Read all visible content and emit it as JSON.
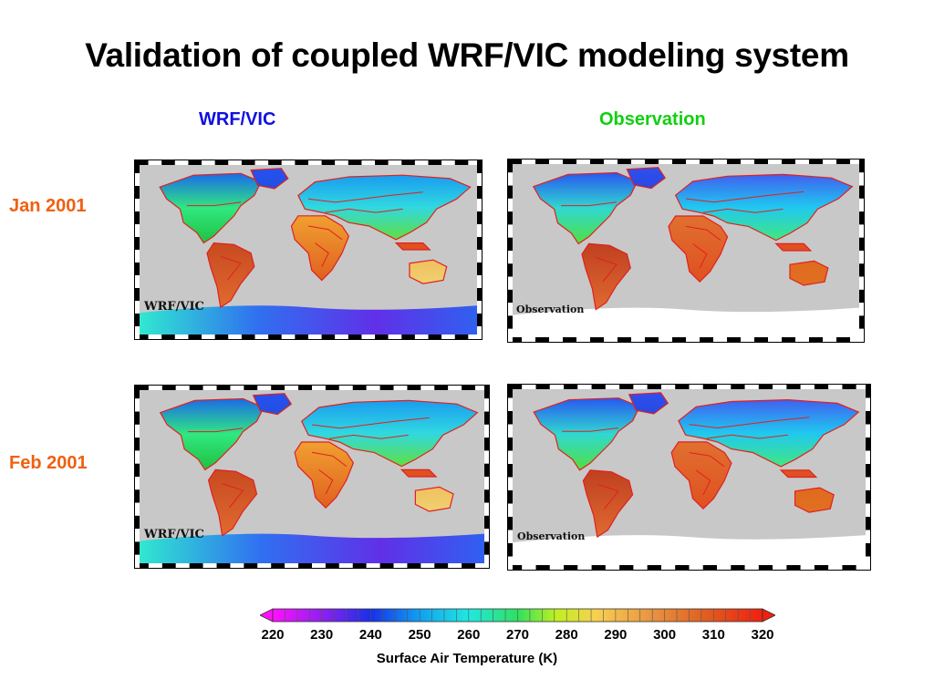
{
  "title": "Validation of coupled WRF/VIC modeling system",
  "columns": {
    "wrf": "WRF/VIC",
    "obs": "Observation"
  },
  "rows": {
    "jan": "Jan 2001",
    "feb": "Feb 2001"
  },
  "panels": [
    {
      "id": "jan-wrf",
      "label": "WRF/VIC"
    },
    {
      "id": "jan-obs",
      "label": "Observation"
    },
    {
      "id": "feb-wrf",
      "label": "WRF/VIC"
    },
    {
      "id": "feb-obs",
      "label": "Observation"
    }
  ],
  "colors": {
    "wrf_heading": "#1010e0",
    "obs_heading": "#10d010",
    "row_label": "#f06010",
    "ocean": "#c8c8c8"
  },
  "colorbar": {
    "ticks": [
      "220",
      "230",
      "240",
      "250",
      "260",
      "270",
      "280",
      "290",
      "300",
      "310",
      "320"
    ],
    "title": "Surface Air Temperature (K)",
    "min": 220,
    "max": 320
  }
}
